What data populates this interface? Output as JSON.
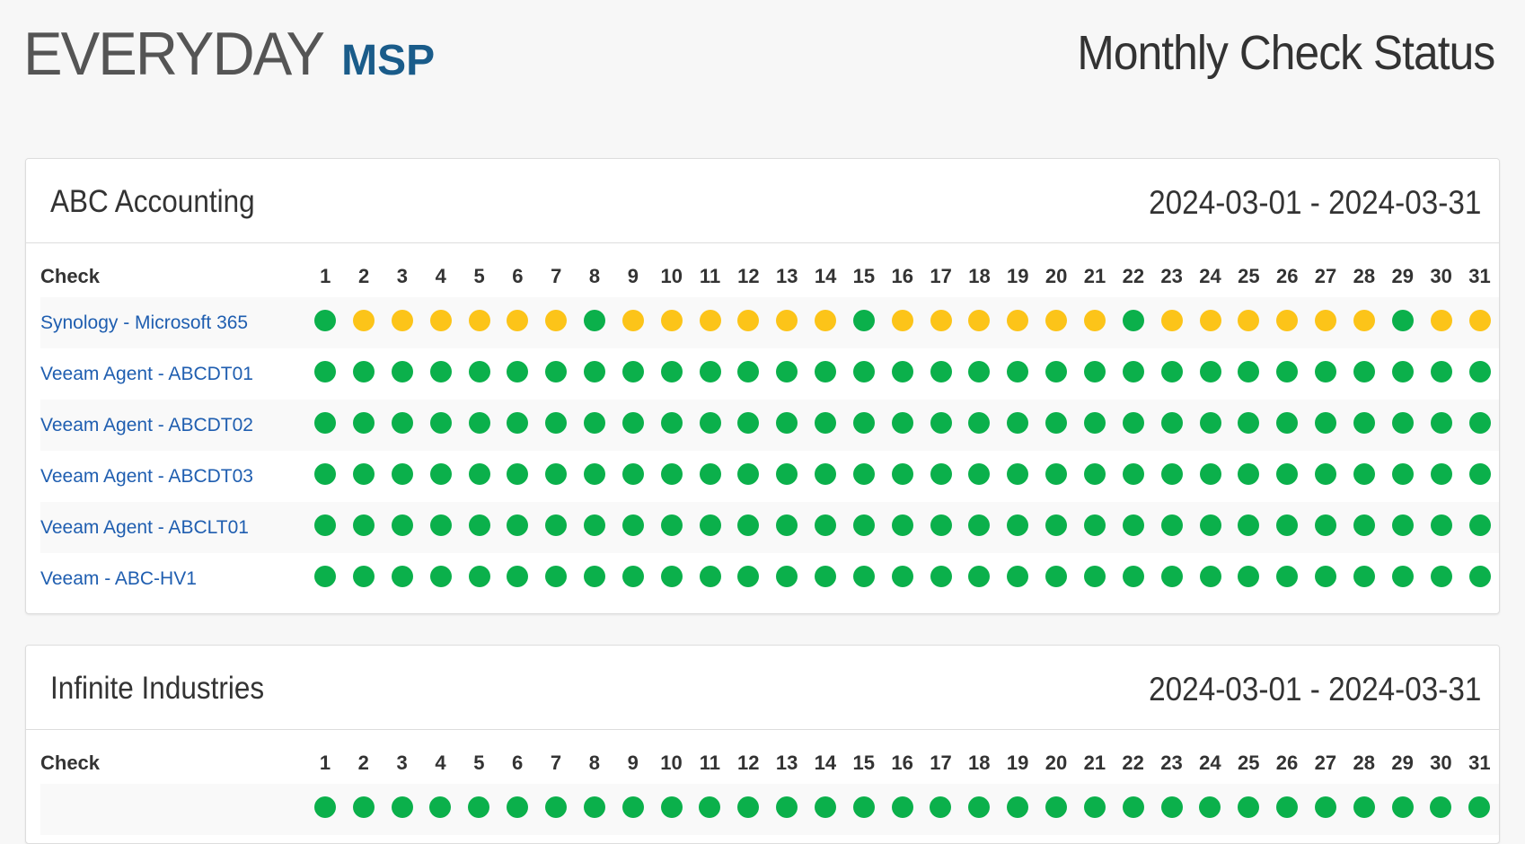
{
  "header": {
    "logo_part1": "EVERYDAY",
    "logo_part2": "MSP",
    "title": "Monthly Check Status"
  },
  "colors": {
    "ok": "#0bb04b",
    "warning": "#fcc419",
    "link": "#1f5eb0",
    "brand": "#1a5c8a"
  },
  "table_header": {
    "check_label": "Check",
    "days": [
      "1",
      "2",
      "3",
      "4",
      "5",
      "6",
      "7",
      "8",
      "9",
      "10",
      "11",
      "12",
      "13",
      "14",
      "15",
      "16",
      "17",
      "18",
      "19",
      "20",
      "21",
      "22",
      "23",
      "24",
      "25",
      "26",
      "27",
      "28",
      "29",
      "30",
      "31"
    ]
  },
  "clients": [
    {
      "name": "ABC Accounting",
      "date_range": "2024-03-01 - 2024-03-31",
      "checks": [
        {
          "name": "Synology - Microsoft 365",
          "statuses": [
            "ok",
            "warning",
            "warning",
            "warning",
            "warning",
            "warning",
            "warning",
            "ok",
            "warning",
            "warning",
            "warning",
            "warning",
            "warning",
            "warning",
            "ok",
            "warning",
            "warning",
            "warning",
            "warning",
            "warning",
            "warning",
            "ok",
            "warning",
            "warning",
            "warning",
            "warning",
            "warning",
            "warning",
            "ok",
            "warning",
            "warning"
          ]
        },
        {
          "name": "Veeam Agent - ABCDT01",
          "statuses": [
            "ok",
            "ok",
            "ok",
            "ok",
            "ok",
            "ok",
            "ok",
            "ok",
            "ok",
            "ok",
            "ok",
            "ok",
            "ok",
            "ok",
            "ok",
            "ok",
            "ok",
            "ok",
            "ok",
            "ok",
            "ok",
            "ok",
            "ok",
            "ok",
            "ok",
            "ok",
            "ok",
            "ok",
            "ok",
            "ok",
            "ok"
          ]
        },
        {
          "name": "Veeam Agent - ABCDT02",
          "statuses": [
            "ok",
            "ok",
            "ok",
            "ok",
            "ok",
            "ok",
            "ok",
            "ok",
            "ok",
            "ok",
            "ok",
            "ok",
            "ok",
            "ok",
            "ok",
            "ok",
            "ok",
            "ok",
            "ok",
            "ok",
            "ok",
            "ok",
            "ok",
            "ok",
            "ok",
            "ok",
            "ok",
            "ok",
            "ok",
            "ok",
            "ok"
          ]
        },
        {
          "name": "Veeam Agent - ABCDT03",
          "statuses": [
            "ok",
            "ok",
            "ok",
            "ok",
            "ok",
            "ok",
            "ok",
            "ok",
            "ok",
            "ok",
            "ok",
            "ok",
            "ok",
            "ok",
            "ok",
            "ok",
            "ok",
            "ok",
            "ok",
            "ok",
            "ok",
            "ok",
            "ok",
            "ok",
            "ok",
            "ok",
            "ok",
            "ok",
            "ok",
            "ok",
            "ok"
          ]
        },
        {
          "name": "Veeam Agent - ABCLT01",
          "statuses": [
            "ok",
            "ok",
            "ok",
            "ok",
            "ok",
            "ok",
            "ok",
            "ok",
            "ok",
            "ok",
            "ok",
            "ok",
            "ok",
            "ok",
            "ok",
            "ok",
            "ok",
            "ok",
            "ok",
            "ok",
            "ok",
            "ok",
            "ok",
            "ok",
            "ok",
            "ok",
            "ok",
            "ok",
            "ok",
            "ok",
            "ok"
          ]
        },
        {
          "name": "Veeam - ABC-HV1",
          "statuses": [
            "ok",
            "ok",
            "ok",
            "ok",
            "ok",
            "ok",
            "ok",
            "ok",
            "ok",
            "ok",
            "ok",
            "ok",
            "ok",
            "ok",
            "ok",
            "ok",
            "ok",
            "ok",
            "ok",
            "ok",
            "ok",
            "ok",
            "ok",
            "ok",
            "ok",
            "ok",
            "ok",
            "ok",
            "ok",
            "ok",
            "ok"
          ]
        }
      ]
    },
    {
      "name": "Infinite Industries",
      "date_range": "2024-03-01 - 2024-03-31",
      "checks": [
        {
          "name": "",
          "statuses": [
            "ok",
            "ok",
            "ok",
            "ok",
            "ok",
            "ok",
            "ok",
            "ok",
            "ok",
            "ok",
            "ok",
            "ok",
            "ok",
            "ok",
            "ok",
            "ok",
            "ok",
            "ok",
            "ok",
            "ok",
            "ok",
            "ok",
            "ok",
            "ok",
            "ok",
            "ok",
            "ok",
            "ok",
            "ok",
            "ok",
            "ok"
          ]
        }
      ]
    }
  ]
}
